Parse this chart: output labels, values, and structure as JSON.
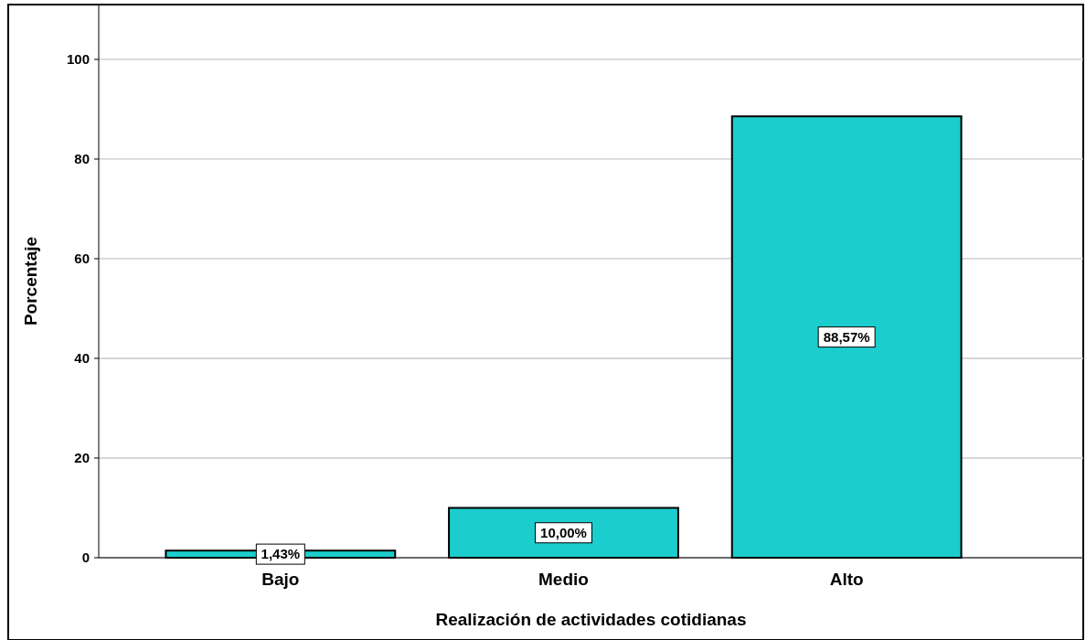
{
  "chart_data": {
    "type": "bar",
    "xlabel": "Realización de actividades cotidianas",
    "ylabel": "Porcentaje",
    "categories": [
      "Bajo",
      "Medio",
      "Alto"
    ],
    "values": [
      1.43,
      10.0,
      88.57
    ],
    "value_labels": [
      "1,43%",
      "10,00%",
      "88,57%"
    ],
    "color": "#1ccdcd",
    "ylim": [
      0,
      111
    ],
    "yticks": [
      0,
      20,
      40,
      60,
      80,
      100
    ],
    "grid": "y"
  }
}
